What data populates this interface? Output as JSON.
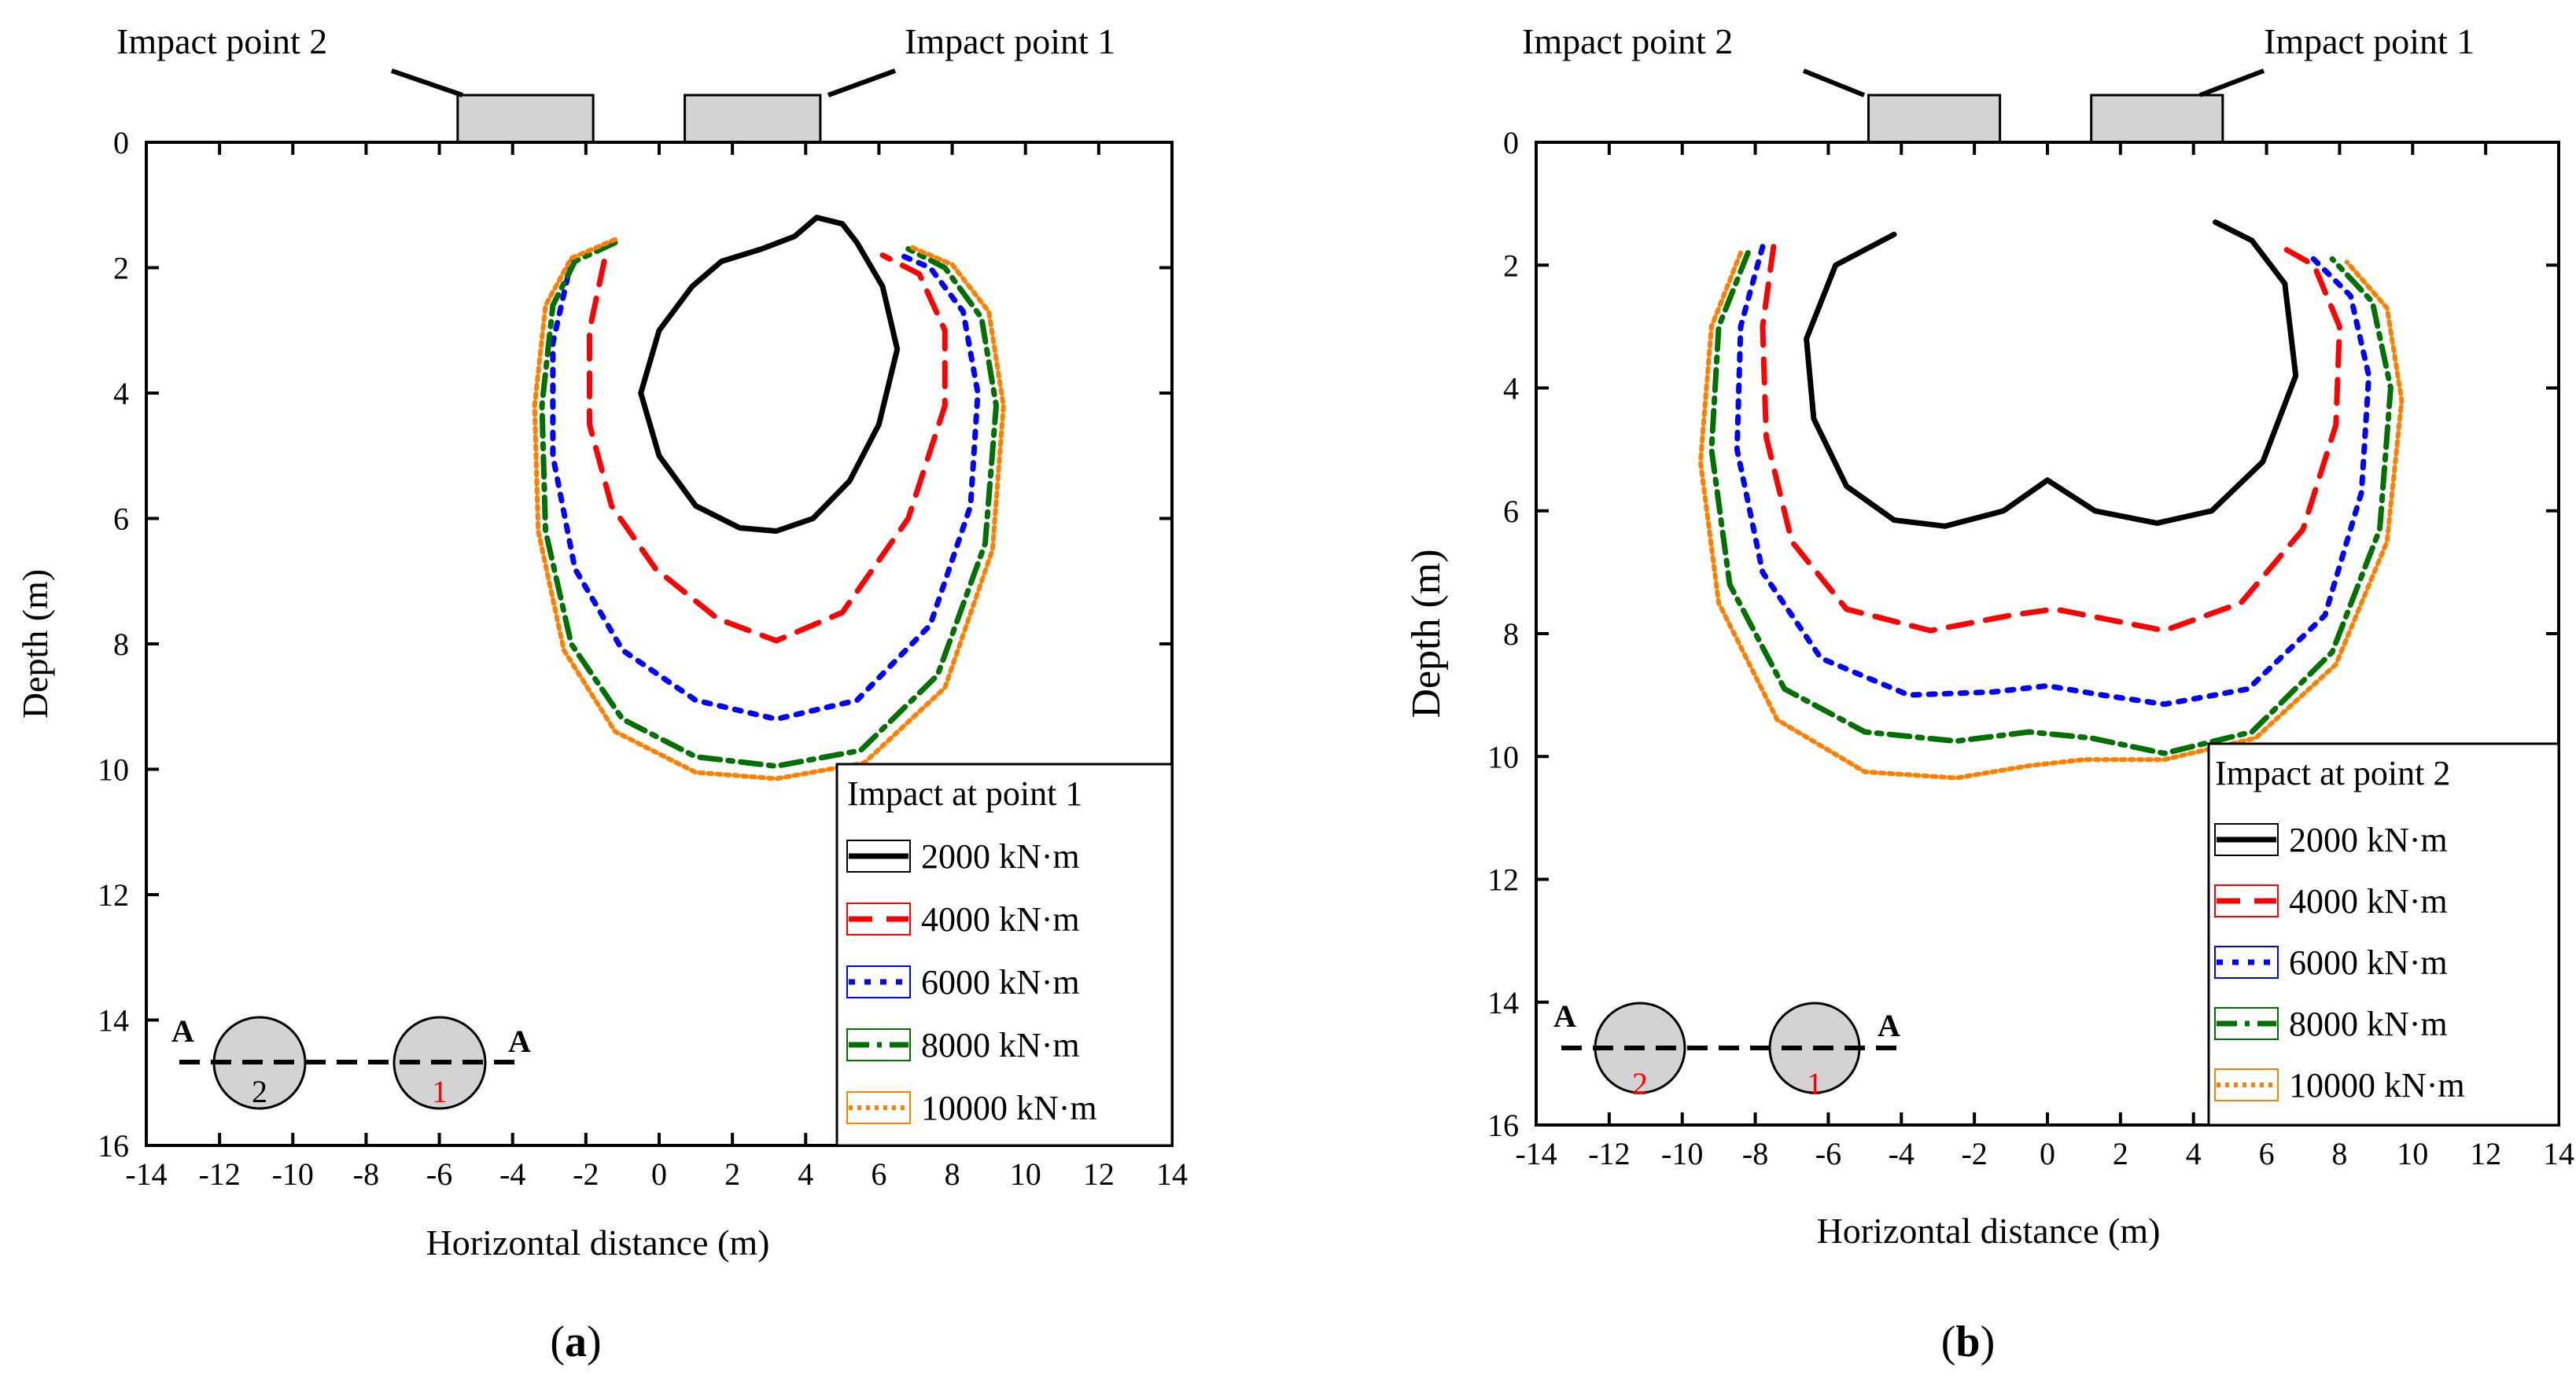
{
  "chart_data": [
    {
      "type": "line",
      "panel": "(a)",
      "panel_letter": "a",
      "xlabel": "Horizontal distance (m)",
      "ylabel": "Depth (m)",
      "xlim": [
        -14,
        14
      ],
      "ylim": [
        0,
        16
      ],
      "y_inverted": true,
      "xticks": [
        -14,
        -12,
        -10,
        -8,
        -6,
        -4,
        -2,
        0,
        2,
        4,
        6,
        8,
        10,
        12,
        14
      ],
      "yticks": [
        0,
        2,
        4,
        6,
        8,
        10,
        12,
        14,
        16
      ],
      "annotations": {
        "impact_point_2": "Impact point 2",
        "impact_point_1": "Impact point 1",
        "section_left": "A",
        "section_right": "A",
        "hole_2": "2",
        "hole_1": "1"
      },
      "impact_pads": [
        {
          "x_from": -5.5,
          "x_to": -1.8
        },
        {
          "x_from": 0.7,
          "x_to": 4.4
        }
      ],
      "legend": {
        "title": "Impact at point 1",
        "position": "bottom-right",
        "entries": [
          "2000 kN·m",
          "4000 kN·m",
          "6000 kN·m",
          "8000 kN·m",
          "10000 kN·m"
        ]
      },
      "series": [
        {
          "name": "2000 kN·m",
          "color": "#000000",
          "style": "solid",
          "points": [
            [
              4.3,
              1.2
            ],
            [
              3.7,
              1.5
            ],
            [
              2.8,
              1.7
            ],
            [
              1.7,
              1.9
            ],
            [
              0.9,
              2.3
            ],
            [
              0.0,
              3.0
            ],
            [
              -0.5,
              4.0
            ],
            [
              0.0,
              5.0
            ],
            [
              1.0,
              5.8
            ],
            [
              2.2,
              6.15
            ],
            [
              3.2,
              6.2
            ],
            [
              4.2,
              6.0
            ],
            [
              5.2,
              5.4
            ],
            [
              6.0,
              4.5
            ],
            [
              6.5,
              3.3
            ],
            [
              6.1,
              2.3
            ],
            [
              5.4,
              1.6
            ],
            [
              5.0,
              1.3
            ],
            [
              4.3,
              1.2
            ]
          ]
        },
        {
          "name": "4000 kN·m",
          "color": "#ff0000",
          "style": "dashed",
          "points": [
            [
              -1.5,
              1.9
            ],
            [
              -1.9,
              3.0
            ],
            [
              -1.9,
              4.5
            ],
            [
              -1.3,
              5.8
            ],
            [
              -0.1,
              6.8
            ],
            [
              1.6,
              7.6
            ],
            [
              3.2,
              7.95
            ],
            [
              5.0,
              7.5
            ],
            [
              6.8,
              6.0
            ],
            [
              7.8,
              4.2
            ],
            [
              7.8,
              3.0
            ],
            [
              7.1,
              2.1
            ],
            [
              6.1,
              1.8
            ]
          ]
        },
        {
          "name": "6000 kN·m",
          "color": "#0000ff",
          "style": "dotted",
          "points": [
            [
              -2.4,
              1.9
            ],
            [
              -2.9,
              3.2
            ],
            [
              -2.9,
              5.0
            ],
            [
              -2.3,
              6.8
            ],
            [
              -1.0,
              8.1
            ],
            [
              1.0,
              8.9
            ],
            [
              3.2,
              9.2
            ],
            [
              5.4,
              8.9
            ],
            [
              7.4,
              7.7
            ],
            [
              8.5,
              5.8
            ],
            [
              8.7,
              4.0
            ],
            [
              8.3,
              2.7
            ],
            [
              7.4,
              2.0
            ],
            [
              6.6,
              1.8
            ]
          ]
        },
        {
          "name": "8000 kN·m",
          "color": "#007000",
          "style": "dashdot",
          "points": [
            [
              -1.2,
              1.6
            ],
            [
              -2.3,
              1.9
            ],
            [
              -2.9,
              2.6
            ],
            [
              -3.2,
              4.2
            ],
            [
              -3.1,
              6.2
            ],
            [
              -2.4,
              8.0
            ],
            [
              -1.0,
              9.2
            ],
            [
              1.0,
              9.8
            ],
            [
              3.2,
              9.95
            ],
            [
              5.5,
              9.7
            ],
            [
              7.6,
              8.5
            ],
            [
              8.9,
              6.4
            ],
            [
              9.2,
              4.2
            ],
            [
              8.8,
              2.8
            ],
            [
              7.8,
              2.0
            ],
            [
              6.8,
              1.7
            ]
          ]
        },
        {
          "name": "10000 kN·m",
          "color": "#ff8000",
          "style": "finedot",
          "points": [
            [
              -1.2,
              1.55
            ],
            [
              -2.4,
              1.85
            ],
            [
              -3.1,
              2.6
            ],
            [
              -3.4,
              4.2
            ],
            [
              -3.3,
              6.2
            ],
            [
              -2.6,
              8.1
            ],
            [
              -1.2,
              9.4
            ],
            [
              1.0,
              10.05
            ],
            [
              3.2,
              10.15
            ],
            [
              5.6,
              9.9
            ],
            [
              7.8,
              8.7
            ],
            [
              9.1,
              6.5
            ],
            [
              9.4,
              4.2
            ],
            [
              9.0,
              2.7
            ],
            [
              8.0,
              1.95
            ],
            [
              6.8,
              1.65
            ]
          ]
        }
      ],
      "inset": {
        "section_y": 14.7,
        "holes": [
          {
            "x": -11
          },
          {
            "x": -6
          }
        ]
      }
    },
    {
      "type": "line",
      "panel": "(b)",
      "panel_letter": "b",
      "xlabel": "Horizontal distance (m)",
      "ylabel": "Depth (m)",
      "xlim": [
        -14,
        14
      ],
      "ylim": [
        0,
        16
      ],
      "y_inverted": true,
      "xticks": [
        -14,
        -12,
        -10,
        -8,
        -6,
        -4,
        -2,
        0,
        2,
        4,
        6,
        8,
        10,
        12,
        14
      ],
      "yticks": [
        0,
        2,
        4,
        6,
        8,
        10,
        12,
        14,
        16
      ],
      "annotations": {
        "impact_point_2": "Impact point 2",
        "impact_point_1": "Impact point 1",
        "section_left": "A",
        "section_right": "A",
        "hole_2": "2",
        "hole_1": "1"
      },
      "impact_pads": [
        {
          "x_from": -4.9,
          "x_to": -1.3
        },
        {
          "x_from": 1.2,
          "x_to": 4.8
        }
      ],
      "legend": {
        "title": "Impact at point 2",
        "position": "bottom-right",
        "entries": [
          "2000 kN·m",
          "4000 kN·m",
          "6000 kN·m",
          "8000 kN·m",
          "10000 kN·m"
        ]
      },
      "series": [
        {
          "name": "2000 kN·m",
          "color": "#000000",
          "style": "solid",
          "points": [
            [
              -4.2,
              1.5
            ],
            [
              -5.8,
              2.0
            ],
            [
              -6.6,
              3.2
            ],
            [
              -6.4,
              4.5
            ],
            [
              -5.5,
              5.6
            ],
            [
              -4.2,
              6.15
            ],
            [
              -2.8,
              6.25
            ],
            [
              -1.2,
              6.0
            ],
            [
              0.0,
              5.5
            ],
            [
              1.3,
              6.0
            ],
            [
              3.0,
              6.2
            ],
            [
              4.5,
              6.0
            ],
            [
              5.9,
              5.2
            ],
            [
              6.8,
              3.8
            ],
            [
              6.5,
              2.3
            ],
            [
              5.6,
              1.6
            ],
            [
              4.6,
              1.3
            ]
          ]
        },
        {
          "name": "4000 kN·m",
          "color": "#ff0000",
          "style": "dashed",
          "points": [
            [
              -7.5,
              1.7
            ],
            [
              -7.8,
              3.0
            ],
            [
              -7.7,
              4.8
            ],
            [
              -7.0,
              6.5
            ],
            [
              -5.5,
              7.6
            ],
            [
              -3.2,
              7.95
            ],
            [
              -1.0,
              7.7
            ],
            [
              0.2,
              7.6
            ],
            [
              1.5,
              7.75
            ],
            [
              3.2,
              7.95
            ],
            [
              5.3,
              7.5
            ],
            [
              7.0,
              6.3
            ],
            [
              7.9,
              4.6
            ],
            [
              8.0,
              3.0
            ],
            [
              7.3,
              2.0
            ],
            [
              6.4,
              1.7
            ]
          ]
        },
        {
          "name": "6000 kN·m",
          "color": "#0000ff",
          "style": "dotted",
          "points": [
            [
              -7.8,
              1.7
            ],
            [
              -8.4,
              3.0
            ],
            [
              -8.5,
              5.0
            ],
            [
              -7.8,
              7.0
            ],
            [
              -6.2,
              8.4
            ],
            [
              -3.8,
              9.0
            ],
            [
              -1.5,
              8.95
            ],
            [
              0.0,
              8.85
            ],
            [
              1.5,
              9.0
            ],
            [
              3.2,
              9.15
            ],
            [
              5.5,
              8.9
            ],
            [
              7.6,
              7.7
            ],
            [
              8.6,
              5.7
            ],
            [
              8.8,
              3.8
            ],
            [
              8.3,
              2.5
            ],
            [
              7.2,
              1.85
            ]
          ]
        },
        {
          "name": "8000 kN·m",
          "color": "#007000",
          "style": "dashdot",
          "points": [
            [
              -8.2,
              1.8
            ],
            [
              -9.0,
              3.0
            ],
            [
              -9.2,
              5.0
            ],
            [
              -8.7,
              7.2
            ],
            [
              -7.2,
              8.9
            ],
            [
              -5.0,
              9.6
            ],
            [
              -2.5,
              9.75
            ],
            [
              -0.5,
              9.6
            ],
            [
              1.2,
              9.7
            ],
            [
              3.2,
              9.95
            ],
            [
              5.6,
              9.6
            ],
            [
              7.8,
              8.3
            ],
            [
              9.1,
              6.3
            ],
            [
              9.4,
              4.0
            ],
            [
              8.9,
              2.6
            ],
            [
              7.8,
              1.9
            ]
          ]
        },
        {
          "name": "10000 kN·m",
          "color": "#ff8000",
          "style": "finedot",
          "points": [
            [
              -8.4,
              1.8
            ],
            [
              -9.2,
              3.0
            ],
            [
              -9.5,
              5.2
            ],
            [
              -9.0,
              7.5
            ],
            [
              -7.4,
              9.4
            ],
            [
              -5.0,
              10.25
            ],
            [
              -2.5,
              10.35
            ],
            [
              -0.5,
              10.15
            ],
            [
              1.0,
              10.05
            ],
            [
              3.2,
              10.05
            ],
            [
              5.7,
              9.7
            ],
            [
              7.9,
              8.5
            ],
            [
              9.3,
              6.5
            ],
            [
              9.7,
              4.2
            ],
            [
              9.3,
              2.7
            ],
            [
              8.2,
              1.95
            ]
          ]
        }
      ],
      "inset": {
        "section_y": 14.7,
        "holes": [
          {
            "x": -11
          },
          {
            "x": -6
          }
        ]
      }
    }
  ]
}
